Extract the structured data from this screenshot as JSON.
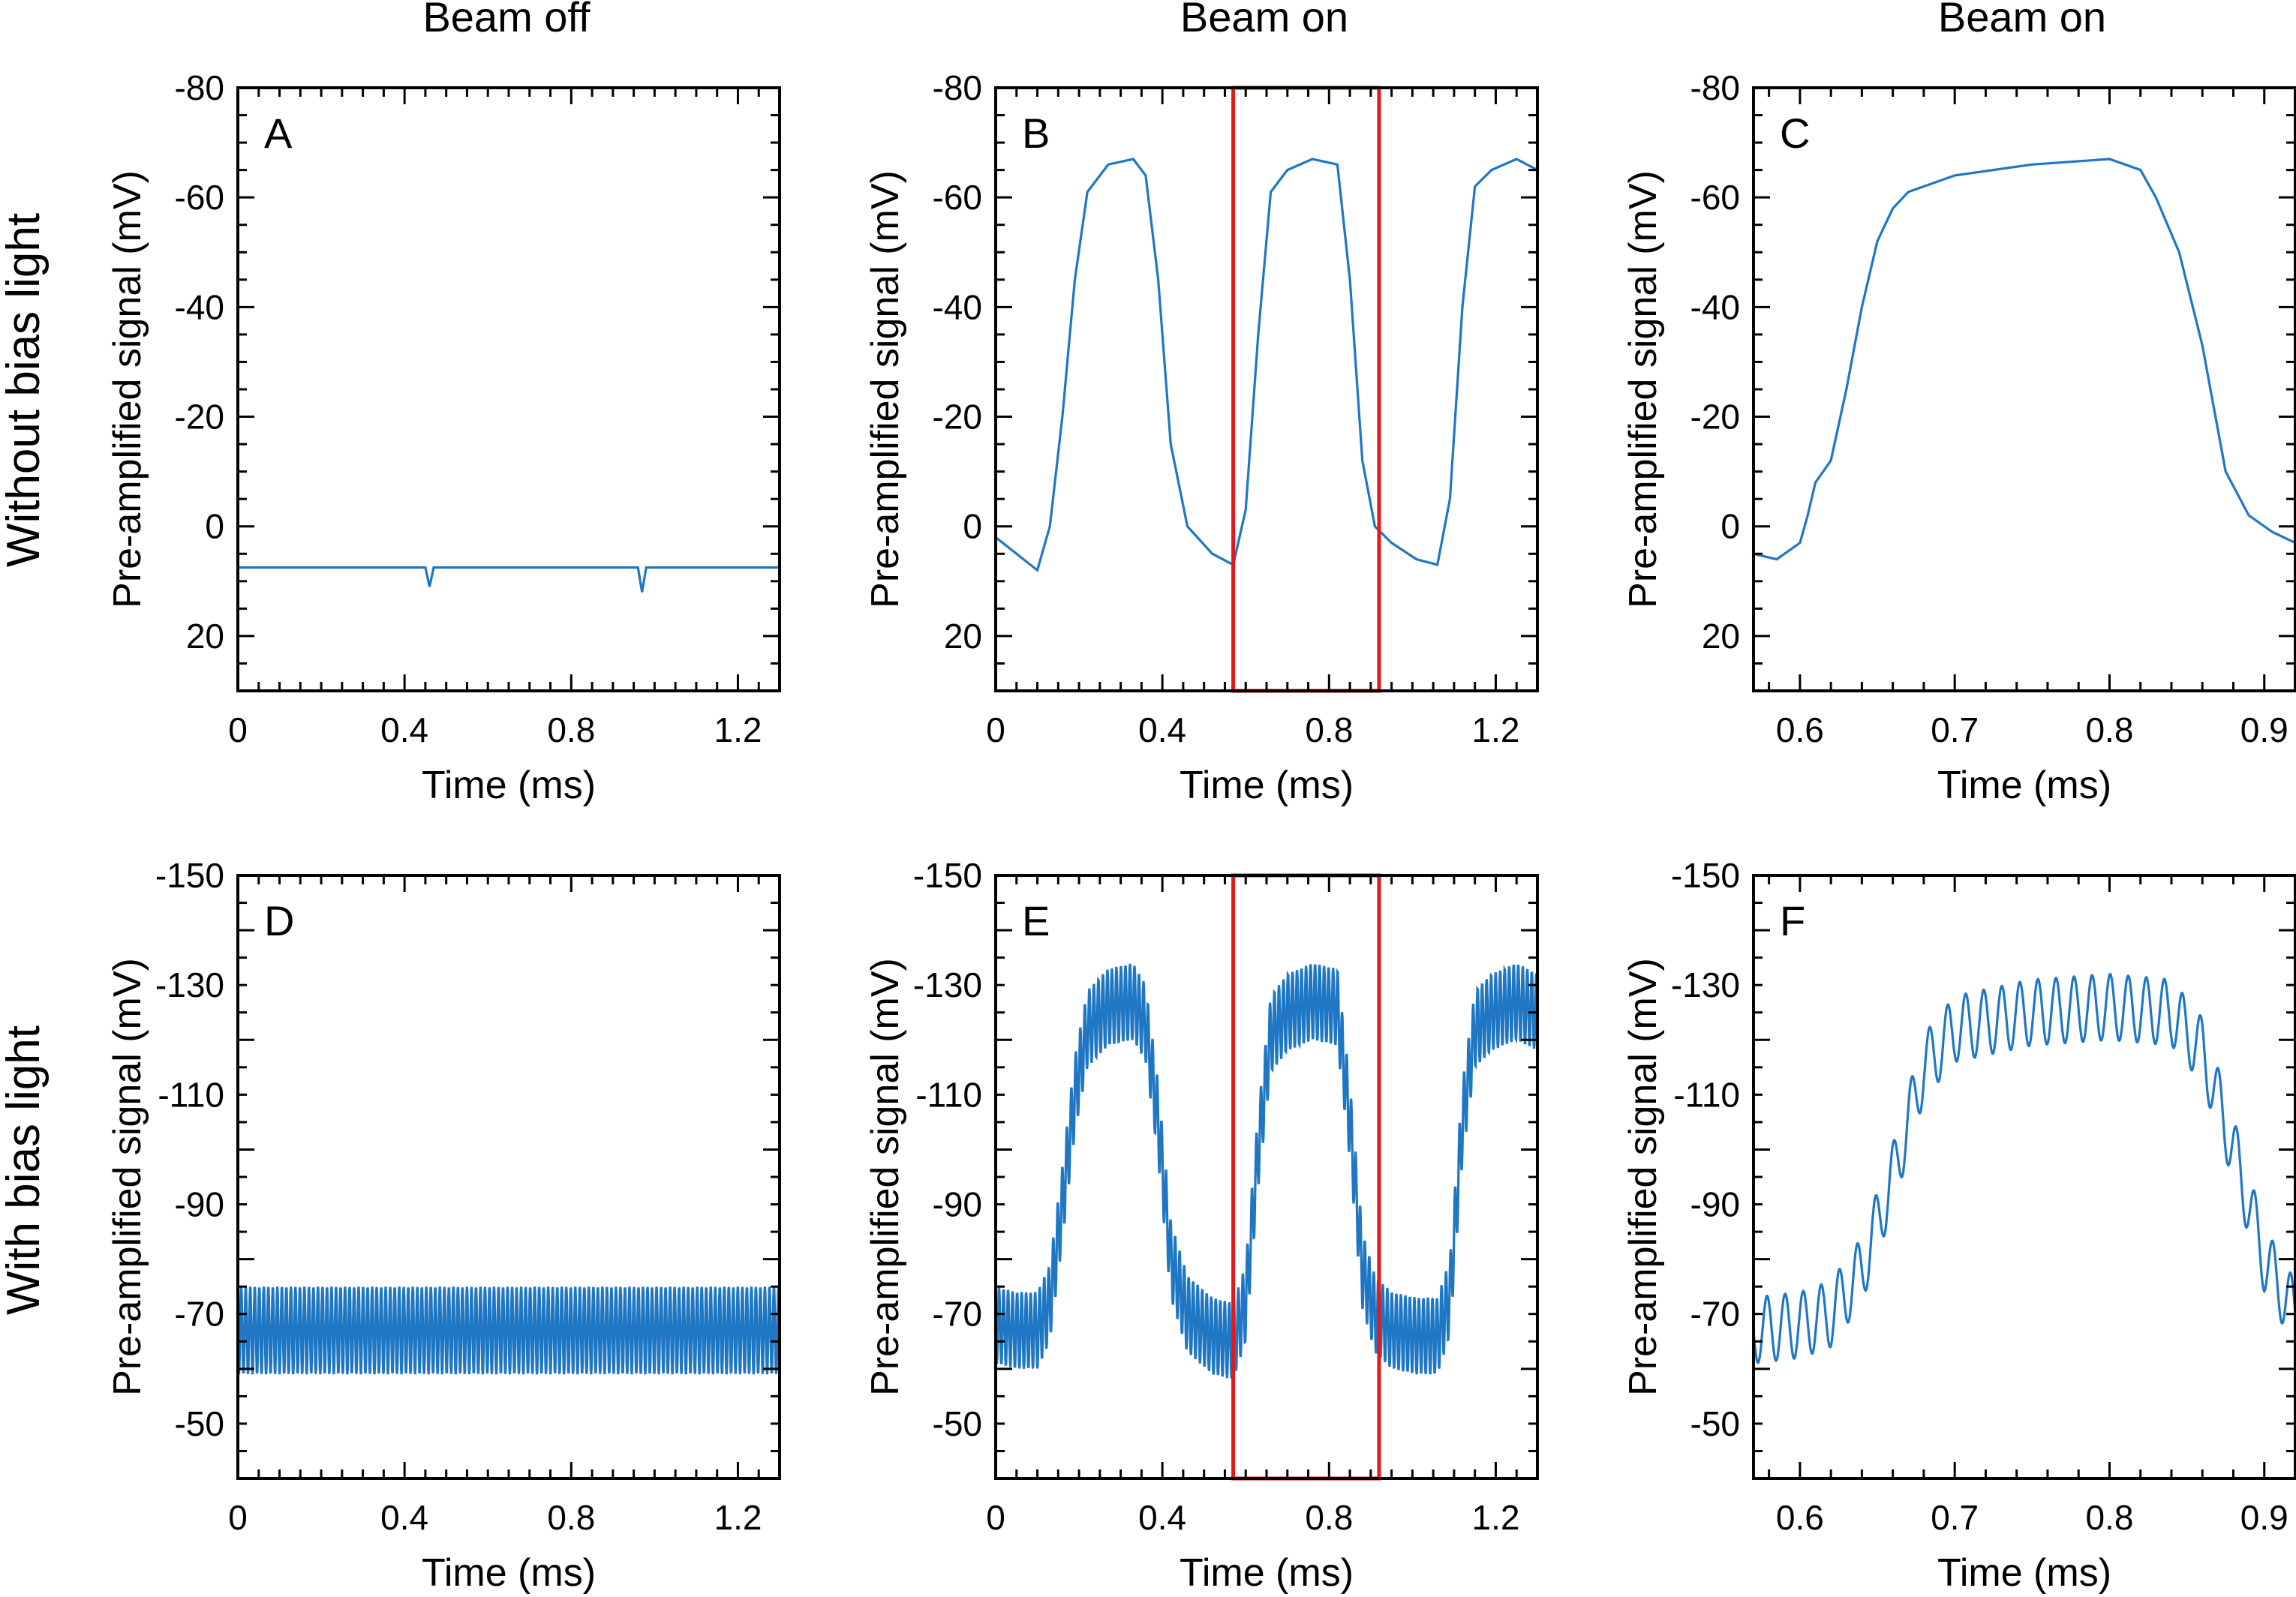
{
  "colors": {
    "trace": "#1f77c4",
    "highlight": "#e31a1c",
    "axis": "#000000"
  },
  "columns": [
    "Beam off",
    "Beam on",
    "Beam on"
  ],
  "rows": [
    "Without bias light",
    "With bias light"
  ],
  "chart_data": [
    {
      "type": "line",
      "panel": "A",
      "title": "Beam off",
      "xlabel": "Time (ms)",
      "ylabel": "Pre-amplified signal (mV)",
      "xlim": [
        0,
        1.3
      ],
      "ylim": [
        30,
        -80
      ],
      "xticks": [
        0,
        0.4,
        0.8,
        1.2
      ],
      "xtick_labels": [
        "0",
        "0.4",
        "0.8",
        "1.2"
      ],
      "yticks": [
        -80,
        -60,
        -40,
        -20,
        0,
        20
      ],
      "ytick_labels": [
        "-80",
        "-60",
        "-40",
        "-20",
        "0",
        "20"
      ],
      "series": [
        {
          "name": "signal",
          "x": [
            0,
            0.45,
            0.46,
            0.47,
            0.96,
            0.97,
            0.98,
            1.3
          ],
          "y": [
            7.5,
            7.5,
            11,
            7.5,
            7.5,
            12,
            7.5,
            7.5
          ]
        }
      ]
    },
    {
      "type": "line",
      "panel": "B",
      "title": "Beam on",
      "xlabel": "Time (ms)",
      "ylabel": "Pre-amplified signal (mV)",
      "xlim": [
        0,
        1.3
      ],
      "ylim": [
        30,
        -80
      ],
      "xticks": [
        0,
        0.4,
        0.8,
        1.2
      ],
      "xtick_labels": [
        "0",
        "0.4",
        "0.8",
        "1.2"
      ],
      "yticks": [
        -80,
        -60,
        -40,
        -20,
        0,
        20
      ],
      "ytick_labels": [
        "-80",
        "-60",
        "-40",
        "-20",
        "0",
        "20"
      ],
      "highlight_x": [
        0.57,
        0.92
      ],
      "series": [
        {
          "name": "signal",
          "x": [
            0,
            0.05,
            0.1,
            0.13,
            0.16,
            0.19,
            0.22,
            0.27,
            0.33,
            0.36,
            0.39,
            0.42,
            0.46,
            0.52,
            0.57,
            0.6,
            0.63,
            0.66,
            0.7,
            0.76,
            0.82,
            0.85,
            0.88,
            0.91,
            0.95,
            1.01,
            1.06,
            1.09,
            1.12,
            1.15,
            1.19,
            1.25,
            1.3
          ],
          "y": [
            2,
            5,
            8,
            0,
            -20,
            -45,
            -61,
            -66,
            -67,
            -64,
            -45,
            -15,
            0,
            5,
            7,
            -3,
            -35,
            -61,
            -65,
            -67,
            -66,
            -45,
            -12,
            0,
            3,
            6,
            7,
            -5,
            -40,
            -62,
            -65,
            -67,
            -65
          ]
        }
      ]
    },
    {
      "type": "line",
      "panel": "C",
      "title": "Beam on",
      "xlabel": "Time (ms)",
      "ylabel": "Pre-amplified signal  (mV)",
      "xlim": [
        0.57,
        0.92
      ],
      "ylim": [
        30,
        -80
      ],
      "xticks": [
        0.6,
        0.7,
        0.8,
        0.9
      ],
      "xtick_labels": [
        "0.6",
        "0.7",
        "0.8",
        "0.9"
      ],
      "yticks": [
        -80,
        -60,
        -40,
        -20,
        0,
        20
      ],
      "ytick_labels": [
        "-80",
        "-60",
        "-40",
        "-20",
        "0",
        "20"
      ],
      "series": [
        {
          "name": "signal",
          "x": [
            0.57,
            0.585,
            0.6,
            0.605,
            0.61,
            0.62,
            0.63,
            0.64,
            0.65,
            0.66,
            0.67,
            0.7,
            0.75,
            0.8,
            0.82,
            0.83,
            0.845,
            0.86,
            0.875,
            0.89,
            0.905,
            0.92
          ],
          "y": [
            5,
            6,
            3,
            -2,
            -8,
            -12,
            -25,
            -40,
            -52,
            -58,
            -61,
            -64,
            -66,
            -67,
            -65,
            -60,
            -50,
            -33,
            -10,
            -2,
            1,
            3
          ]
        }
      ]
    },
    {
      "type": "line",
      "panel": "D",
      "title": "Beam off",
      "xlabel": "Time (ms)",
      "ylabel": "Pre-amplified signal (mV)",
      "xlim": [
        0,
        1.3
      ],
      "ylim": [
        -40,
        -150
      ],
      "xticks": [
        0,
        0.4,
        0.8,
        1.2
      ],
      "xtick_labels": [
        "0",
        "0.4",
        "0.8",
        "1.2"
      ],
      "yticks": [
        -150,
        -130,
        -110,
        -90,
        -70,
        -50
      ],
      "ytick_labels": [
        "-150",
        "-130",
        "-110",
        "-90",
        "-70",
        "-50"
      ],
      "oscillation_amplitude": 8,
      "series": [
        {
          "name": "signal",
          "x": [
            0,
            1.3
          ],
          "y": [
            -67,
            -67
          ]
        }
      ]
    },
    {
      "type": "line",
      "panel": "E",
      "title": "Beam on",
      "xlabel": "Time (ms)",
      "ylabel": "Pre-amplified signal  (mV)",
      "xlim": [
        0,
        1.3
      ],
      "ylim": [
        -40,
        -150
      ],
      "xticks": [
        0,
        0.4,
        0.8,
        1.2
      ],
      "xtick_labels": [
        "0",
        "0.4",
        "0.8",
        "1.2"
      ],
      "yticks": [
        -150,
        -130,
        -110,
        -90,
        -70,
        -50
      ],
      "ytick_labels": [
        "-150",
        "-130",
        "-110",
        "-90",
        "-70",
        "-50"
      ],
      "highlight_x": [
        0.57,
        0.92
      ],
      "oscillation_amplitude": 7,
      "series": [
        {
          "name": "signal",
          "x": [
            0,
            0.05,
            0.1,
            0.13,
            0.16,
            0.19,
            0.22,
            0.27,
            0.33,
            0.36,
            0.39,
            0.42,
            0.46,
            0.52,
            0.57,
            0.6,
            0.63,
            0.66,
            0.7,
            0.76,
            0.82,
            0.85,
            0.88,
            0.91,
            0.95,
            1.01,
            1.06,
            1.09,
            1.12,
            1.15,
            1.19,
            1.25,
            1.3
          ],
          "y": [
            -68,
            -67,
            -67,
            -72,
            -90,
            -110,
            -122,
            -126,
            -127,
            -123,
            -105,
            -80,
            -70,
            -66,
            -65,
            -72,
            -100,
            -121,
            -125,
            -127,
            -126,
            -105,
            -78,
            -70,
            -67,
            -66,
            -66,
            -73,
            -105,
            -122,
            -125,
            -127,
            -125
          ]
        }
      ]
    },
    {
      "type": "line",
      "panel": "F",
      "title": "Beam on",
      "xlabel": "Time (ms)",
      "ylabel": "Pre-amplified signal  (mV)",
      "xlim": [
        0.57,
        0.92
      ],
      "ylim": [
        -40,
        -150
      ],
      "xticks": [
        0.6,
        0.7,
        0.8,
        0.9
      ],
      "xtick_labels": [
        "0.6",
        "0.7",
        "0.8",
        "0.9"
      ],
      "yticks": [
        -150,
        -130,
        -110,
        -90,
        -70,
        -50
      ],
      "ytick_labels": [
        "-150",
        "-130",
        "-110",
        "-90",
        "-70",
        "-50"
      ],
      "oscillation_amplitude": 6,
      "series": [
        {
          "name": "signal",
          "x": [
            0.57,
            0.6,
            0.62,
            0.64,
            0.66,
            0.68,
            0.7,
            0.75,
            0.8,
            0.84,
            0.86,
            0.88,
            0.9,
            0.92
          ],
          "y": [
            -67,
            -68,
            -70,
            -78,
            -95,
            -115,
            -122,
            -125,
            -126,
            -125,
            -118,
            -100,
            -80,
            -70
          ]
        }
      ]
    }
  ]
}
